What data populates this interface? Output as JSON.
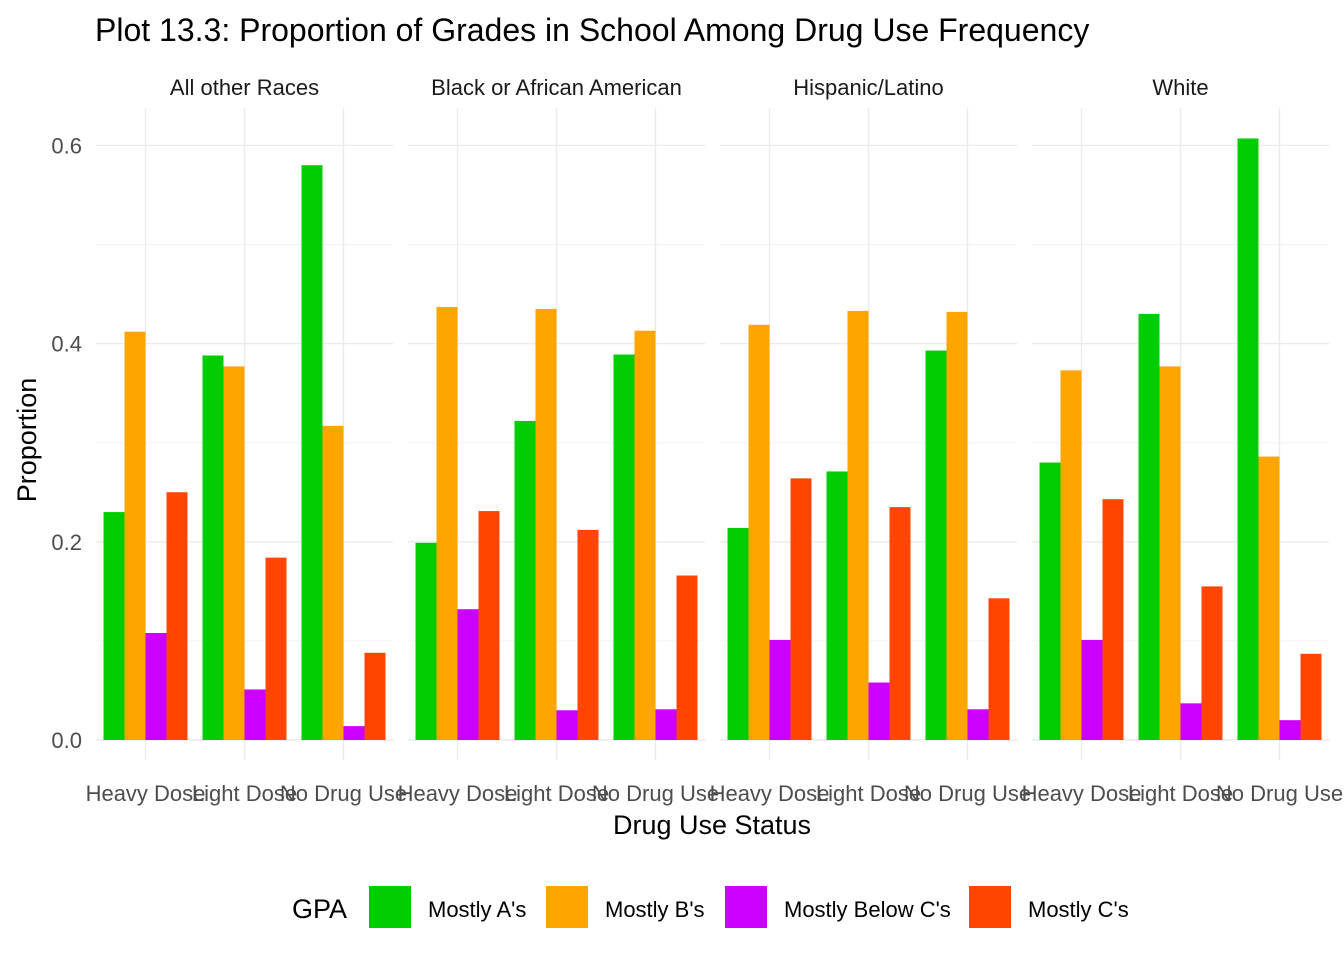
{
  "chart_data": {
    "type": "bar",
    "title": "Plot 13.3: Proportion of Grades in School Among Drug Use Frequency",
    "xlabel": "Drug Use Status",
    "ylabel": "Proportion",
    "ylim": [
      0,
      0.62
    ],
    "yticks": [
      0.0,
      0.2,
      0.4,
      0.6
    ],
    "ytick_labels": [
      "0.0",
      "0.2",
      "0.4",
      "0.6"
    ],
    "grid": true,
    "legend": {
      "title": "GPA",
      "position": "bottom"
    },
    "categories": [
      "Heavy Dose",
      "Light Dose",
      "No Drug Use"
    ],
    "series": [
      {
        "name": "Mostly A's",
        "color": "#00CD00"
      },
      {
        "name": "Mostly B's",
        "color": "#FFA500"
      },
      {
        "name": "Mostly Below C's",
        "color": "#CC00FF"
      },
      {
        "name": "Mostly C's",
        "color": "#FF4500"
      }
    ],
    "facets": [
      {
        "label": "All other Races",
        "values": [
          [
            0.23,
            0.412,
            0.108,
            0.25
          ],
          [
            0.388,
            0.377,
            0.051,
            0.184
          ],
          [
            0.58,
            0.317,
            0.014,
            0.088
          ]
        ]
      },
      {
        "label": "Black or African American",
        "values": [
          [
            0.199,
            0.437,
            0.132,
            0.231
          ],
          [
            0.322,
            0.435,
            0.03,
            0.212
          ],
          [
            0.389,
            0.413,
            0.031,
            0.166
          ]
        ]
      },
      {
        "label": "Hispanic/Latino",
        "values": [
          [
            0.214,
            0.419,
            0.101,
            0.264
          ],
          [
            0.271,
            0.433,
            0.058,
            0.235
          ],
          [
            0.393,
            0.432,
            0.031,
            0.143
          ]
        ]
      },
      {
        "label": "White",
        "values": [
          [
            0.28,
            0.373,
            0.101,
            0.243
          ],
          [
            0.43,
            0.377,
            0.037,
            0.155
          ],
          [
            0.607,
            0.286,
            0.02,
            0.087
          ]
        ]
      }
    ]
  }
}
